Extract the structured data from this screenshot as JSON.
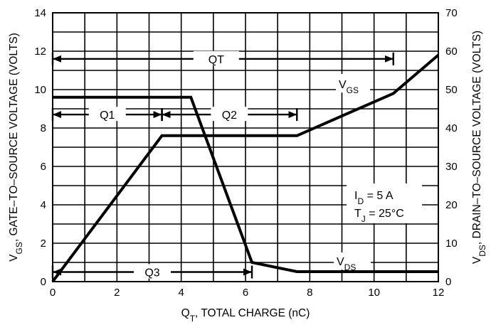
{
  "chart_data": {
    "type": "line",
    "xlabel": {
      "main": "Q",
      "sub": "T",
      "rest": ", TOTAL CHARGE (nC)"
    },
    "ylabel_left": {
      "main": "V",
      "sub": "GS",
      "rest": ", GATE–TO–SOURCE VOLTAGE (VOLTS)"
    },
    "ylabel_right": {
      "main": "V",
      "sub": "DS",
      "rest": ", DRAIN–TO–SOURCE VOLTAGE (VOLTS)"
    },
    "xlim": [
      0,
      12
    ],
    "ylim_left": [
      0,
      14
    ],
    "ylim_right": [
      0,
      70
    ],
    "x_ticks": [
      "0",
      "2",
      "4",
      "6",
      "8",
      "10",
      "12"
    ],
    "y_left_ticks": [
      "0",
      "2",
      "4",
      "6",
      "8",
      "10",
      "12",
      "14"
    ],
    "y_right_ticks": [
      "0",
      "10",
      "20",
      "30",
      "40",
      "50",
      "60",
      "70"
    ],
    "grid": true,
    "series": [
      {
        "name_main": "V",
        "name_sub": "GS",
        "axis": "left",
        "x": [
          0,
          3.4,
          7.6,
          10.6,
          12
        ],
        "y": [
          0,
          7.6,
          7.6,
          9.8,
          11.8
        ]
      },
      {
        "name_main": "V",
        "name_sub": "DS",
        "axis": "right",
        "x": [
          0,
          4.3,
          6.2,
          7.6,
          12
        ],
        "y": [
          48,
          48,
          5,
          2.6,
          2.6
        ]
      }
    ],
    "annotations": {
      "QT": {
        "label": "QT",
        "x0": 0,
        "x1": 10.6,
        "y": 11.6
      },
      "Q1": {
        "label": "Q1",
        "x0": 0,
        "x1": 3.4,
        "y": 8.7
      },
      "Q2": {
        "label": "Q2",
        "x0": 3.4,
        "x1": 7.6,
        "y": 8.7
      },
      "Q3": {
        "label": "Q3",
        "x0": 0,
        "x1": 6.2,
        "y": 0.5
      }
    },
    "conditions": [
      {
        "main": "I",
        "sub": "D",
        "rest": " =  5  A"
      },
      {
        "main": "T",
        "sub": "J",
        "rest": " = 25°C"
      }
    ]
  }
}
